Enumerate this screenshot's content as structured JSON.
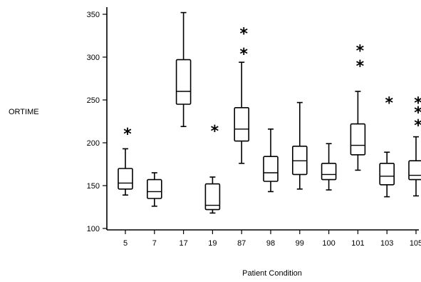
{
  "chart_data": {
    "type": "boxplot",
    "title": "",
    "xlabel": "Patient Condition",
    "ylabel": "ORTIME",
    "ylim": [
      100,
      350
    ],
    "yticks": [
      100,
      150,
      200,
      250,
      300,
      350
    ],
    "grid": false,
    "categories": [
      "5",
      "7",
      "17",
      "19",
      "87",
      "98",
      "99",
      "100",
      "101",
      "103",
      "105"
    ],
    "boxes": [
      {
        "category": "5",
        "min": 139,
        "q1": 146,
        "median": 153,
        "q3": 170,
        "max": 193,
        "outliers": [
          211
        ]
      },
      {
        "category": "7",
        "min": 126,
        "q1": 135,
        "median": 143,
        "q3": 157,
        "max": 165,
        "outliers": []
      },
      {
        "category": "17",
        "min": 219,
        "q1": 245,
        "median": 260,
        "q3": 297,
        "max": 352,
        "outliers": []
      },
      {
        "category": "19",
        "min": 118,
        "q1": 122,
        "median": 127,
        "q3": 152,
        "max": 160,
        "outliers": [
          214
        ]
      },
      {
        "category": "87",
        "min": 176,
        "q1": 202,
        "median": 216,
        "q3": 241,
        "max": 294,
        "outliers": [
          304,
          328
        ]
      },
      {
        "category": "98",
        "min": 143,
        "q1": 155,
        "median": 165,
        "q3": 184,
        "max": 216,
        "outliers": []
      },
      {
        "category": "99",
        "min": 146,
        "q1": 163,
        "median": 179,
        "q3": 196,
        "max": 247,
        "outliers": []
      },
      {
        "category": "100",
        "min": 145,
        "q1": 157,
        "median": 163,
        "q3": 176,
        "max": 199,
        "outliers": []
      },
      {
        "category": "101",
        "min": 168,
        "q1": 186,
        "median": 197,
        "q3": 222,
        "max": 260,
        "outliers": [
          290,
          308
        ]
      },
      {
        "category": "103",
        "min": 137,
        "q1": 151,
        "median": 161,
        "q3": 176,
        "max": 189,
        "outliers": [
          247
        ]
      },
      {
        "category": "105",
        "min": 138,
        "q1": 157,
        "median": 162,
        "q3": 179,
        "max": 207,
        "outliers": [
          221,
          236,
          247
        ]
      }
    ]
  }
}
